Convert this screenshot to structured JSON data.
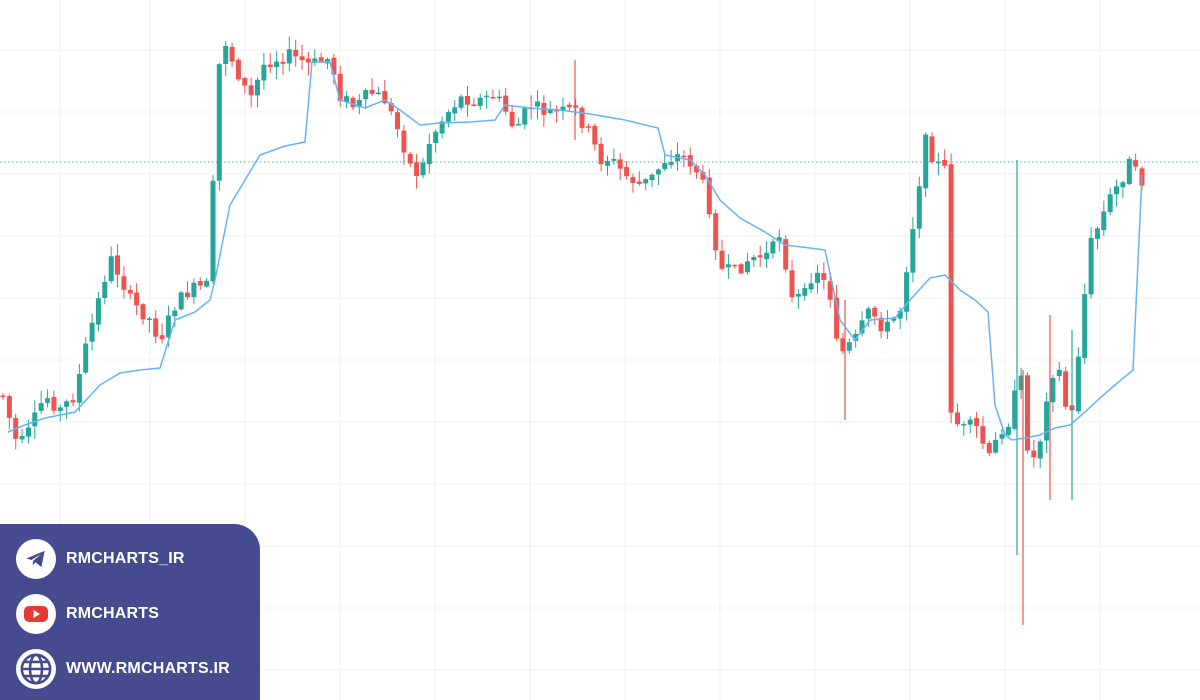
{
  "chart_data": {
    "type": "candlestick",
    "colors": {
      "up": "#26a69a",
      "down": "#ef5350",
      "average_line": "#64b5f6",
      "reference_line": "#26a69a"
    },
    "grid": true,
    "series": [
      {
        "type": "line"
      }
    ]
  },
  "branding": {
    "items": [
      {
        "icon": "telegram-icon",
        "label": "RMCHARTS_IR"
      },
      {
        "icon": "youtube-icon",
        "label": "RMCHARTS"
      },
      {
        "icon": "globe-icon",
        "label": "WWW.RMCHARTS.IR"
      }
    ],
    "background_color": "#454B8E"
  }
}
